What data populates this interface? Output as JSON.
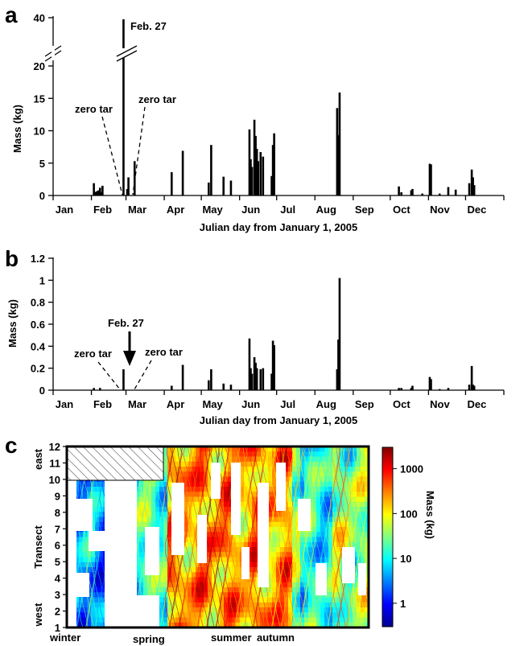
{
  "chart_data": [
    {
      "panel": "a",
      "type": "bar",
      "xlabel": "Julian day from January 1, 2005",
      "ylabel": "Mass (kg)",
      "xlim": [
        0,
        365
      ],
      "ylim": [
        0,
        20
      ],
      "broken_axis": {
        "lower_top": 20,
        "upper_label": 40
      },
      "xticks": [
        {
          "label": "Jan",
          "day": 0
        },
        {
          "label": "Feb",
          "day": 31
        },
        {
          "label": "Mar",
          "day": 59
        },
        {
          "label": "Apr",
          "day": 90
        },
        {
          "label": "May",
          "day": 120
        },
        {
          "label": "Jun",
          "day": 151
        },
        {
          "label": "Jul",
          "day": 181
        },
        {
          "label": "Aug",
          "day": 212
        },
        {
          "label": "Sep",
          "day": 243
        },
        {
          "label": "Oct",
          "day": 273
        },
        {
          "label": "Nov",
          "day": 304
        },
        {
          "label": "Dec",
          "day": 334
        }
      ],
      "yticks": [
        0,
        5,
        10,
        15,
        20
      ],
      "upper_tick": 40,
      "bars": [
        {
          "day": 33,
          "mass": 1.9
        },
        {
          "day": 34,
          "mass": 0.5
        },
        {
          "day": 35,
          "mass": 0.6
        },
        {
          "day": 36,
          "mass": 0.7
        },
        {
          "day": 37,
          "mass": 0.8
        },
        {
          "day": 38,
          "mass": 1.2
        },
        {
          "day": 39,
          "mass": 0.5
        },
        {
          "day": 40,
          "mass": 1.5
        },
        {
          "day": 57,
          "mass": 40,
          "broken": true
        },
        {
          "day": 60,
          "mass": 1.0
        },
        {
          "day": 61,
          "mass": 2.8
        },
        {
          "day": 66,
          "mass": 5.3
        },
        {
          "day": 96,
          "mass": 3.6
        },
        {
          "day": 105,
          "mass": 6.9
        },
        {
          "day": 126,
          "mass": 2.0
        },
        {
          "day": 128,
          "mass": 7.8
        },
        {
          "day": 138,
          "mass": 2.9
        },
        {
          "day": 144,
          "mass": 2.3
        },
        {
          "day": 159,
          "mass": 10.2
        },
        {
          "day": 160,
          "mass": 5.6
        },
        {
          "day": 161,
          "mass": 4.4
        },
        {
          "day": 163,
          "mass": 11.7
        },
        {
          "day": 164,
          "mass": 9.2
        },
        {
          "day": 165,
          "mass": 7.2
        },
        {
          "day": 166,
          "mass": 5.3
        },
        {
          "day": 168,
          "mass": 6.7
        },
        {
          "day": 170,
          "mass": 6.0
        },
        {
          "day": 177,
          "mass": 3.0
        },
        {
          "day": 178,
          "mass": 7.8
        },
        {
          "day": 179,
          "mass": 9.6
        },
        {
          "day": 230,
          "mass": 13.5
        },
        {
          "day": 231,
          "mass": 9.3
        },
        {
          "day": 232,
          "mass": 15.9
        },
        {
          "day": 280,
          "mass": 1.4
        },
        {
          "day": 282,
          "mass": 0.5
        },
        {
          "day": 290,
          "mass": 0.8
        },
        {
          "day": 291,
          "mass": 1.0
        },
        {
          "day": 299,
          "mass": 0.3
        },
        {
          "day": 305,
          "mass": 4.9
        },
        {
          "day": 306,
          "mass": 4.8
        },
        {
          "day": 313,
          "mass": 0.3
        },
        {
          "day": 320,
          "mass": 1.3
        },
        {
          "day": 326,
          "mass": 0.9
        },
        {
          "day": 337,
          "mass": 1.9
        },
        {
          "day": 339,
          "mass": 4.0
        },
        {
          "day": 340,
          "mass": 2.8
        },
        {
          "day": 341,
          "mass": 1.6
        }
      ],
      "annotations": [
        {
          "text": "Feb. 27"
        },
        {
          "text": "zero tar"
        },
        {
          "text": "zero tar"
        }
      ]
    },
    {
      "panel": "b",
      "type": "bar",
      "xlabel": "Julian day from January 1, 2005",
      "ylabel": "Mass (kg)",
      "xlim": [
        0,
        365
      ],
      "ylim": [
        0,
        1.2
      ],
      "xticks": [
        {
          "label": "Jan",
          "day": 0
        },
        {
          "label": "Feb",
          "day": 31
        },
        {
          "label": "Mar",
          "day": 59
        },
        {
          "label": "Apr",
          "day": 90
        },
        {
          "label": "May",
          "day": 120
        },
        {
          "label": "Jun",
          "day": 151
        },
        {
          "label": "Jul",
          "day": 181
        },
        {
          "label": "Aug",
          "day": 212
        },
        {
          "label": "Sep",
          "day": 243
        },
        {
          "label": "Oct",
          "day": 273
        },
        {
          "label": "Nov",
          "day": 304
        },
        {
          "label": "Dec",
          "day": 334
        }
      ],
      "yticks": [
        "0",
        "0.2",
        "0.4",
        "0.6",
        "0.8",
        "1",
        "1.2"
      ],
      "bars": [
        {
          "day": 33,
          "mass": 0.02
        },
        {
          "day": 38,
          "mass": 0.02
        },
        {
          "day": 57,
          "mass": 0.19
        },
        {
          "day": 96,
          "mass": 0.04
        },
        {
          "day": 105,
          "mass": 0.23
        },
        {
          "day": 126,
          "mass": 0.09
        },
        {
          "day": 128,
          "mass": 0.19
        },
        {
          "day": 138,
          "mass": 0.06
        },
        {
          "day": 144,
          "mass": 0.05
        },
        {
          "day": 159,
          "mass": 0.47
        },
        {
          "day": 160,
          "mass": 0.2
        },
        {
          "day": 161,
          "mass": 0.15
        },
        {
          "day": 163,
          "mass": 0.3
        },
        {
          "day": 164,
          "mass": 0.25
        },
        {
          "day": 165,
          "mass": 0.2
        },
        {
          "day": 168,
          "mass": 0.19
        },
        {
          "day": 170,
          "mass": 0.2
        },
        {
          "day": 177,
          "mass": 0.15
        },
        {
          "day": 178,
          "mass": 0.45
        },
        {
          "day": 179,
          "mass": 0.41
        },
        {
          "day": 230,
          "mass": 0.19
        },
        {
          "day": 231,
          "mass": 0.46
        },
        {
          "day": 232,
          "mass": 1.02
        },
        {
          "day": 280,
          "mass": 0.02
        },
        {
          "day": 282,
          "mass": 0.02
        },
        {
          "day": 290,
          "mass": 0.02
        },
        {
          "day": 291,
          "mass": 0.04
        },
        {
          "day": 305,
          "mass": 0.12
        },
        {
          "day": 306,
          "mass": 0.1
        },
        {
          "day": 313,
          "mass": 0.01
        },
        {
          "day": 320,
          "mass": 0.02
        },
        {
          "day": 337,
          "mass": 0.05
        },
        {
          "day": 339,
          "mass": 0.22
        },
        {
          "day": 340,
          "mass": 0.05
        },
        {
          "day": 341,
          "mass": 0.04
        }
      ],
      "annotations": [
        {
          "text": "Feb. 27"
        },
        {
          "text": "zero tar"
        },
        {
          "text": "zero tar"
        }
      ]
    },
    {
      "panel": "c",
      "type": "heatmap",
      "ylabel": "Transect",
      "yticks": [
        "1",
        "2",
        "3",
        "4",
        "5",
        "6",
        "7",
        "8",
        "9",
        "10",
        "11",
        "12"
      ],
      "y_end_labels": {
        "top": "east",
        "bottom": "west"
      },
      "season_labels": [
        "winter",
        "spring",
        "summer",
        "autumn"
      ],
      "colorbar": {
        "label": "Mass (kg)",
        "scale": "log",
        "ticks": [
          "1",
          "10",
          "100",
          "1000"
        ],
        "range": [
          0.3,
          3000
        ],
        "colors": [
          "#00008f",
          "#0000ff",
          "#0080ff",
          "#00ffff",
          "#80ff80",
          "#ffff00",
          "#ff8000",
          "#ff0000",
          "#800000"
        ]
      },
      "hatched_region": {
        "transects": [
          10,
          12
        ],
        "seasons": "winter"
      }
    }
  ],
  "panel_letters": [
    "a",
    "b",
    "c"
  ]
}
